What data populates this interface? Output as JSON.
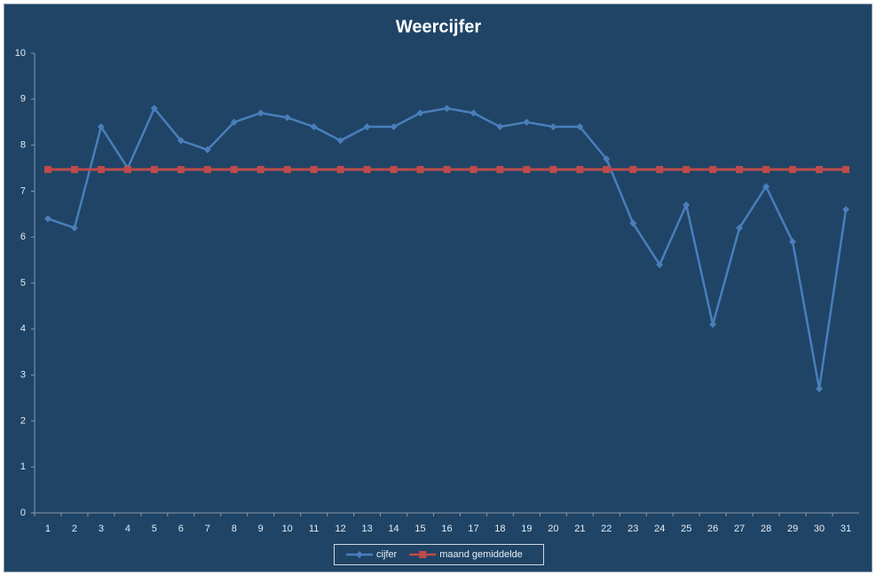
{
  "chart_data": {
    "type": "line",
    "title": "Weercijfer",
    "categories": [
      "1",
      "2",
      "3",
      "4",
      "5",
      "6",
      "7",
      "8",
      "9",
      "10",
      "11",
      "12",
      "13",
      "14",
      "15",
      "16",
      "17",
      "18",
      "19",
      "20",
      "21",
      "22",
      "23",
      "24",
      "25",
      "26",
      "27",
      "28",
      "29",
      "30",
      "31"
    ],
    "series": [
      {
        "name": "cijfer",
        "color": "#4a7ebb",
        "marker": "diamond",
        "values": [
          6.4,
          6.2,
          8.4,
          7.5,
          8.8,
          8.1,
          7.9,
          8.5,
          8.7,
          8.6,
          8.4,
          8.1,
          8.4,
          8.4,
          8.7,
          8.8,
          8.7,
          8.4,
          8.5,
          8.4,
          8.4,
          7.7,
          6.3,
          5.4,
          6.7,
          4.1,
          6.2,
          7.1,
          5.9,
          2.7,
          6.6
        ]
      },
      {
        "name": "maand gemiddelde",
        "color": "#be4b48",
        "marker": "square",
        "values": [
          7.47,
          7.47,
          7.47,
          7.47,
          7.47,
          7.47,
          7.47,
          7.47,
          7.47,
          7.47,
          7.47,
          7.47,
          7.47,
          7.47,
          7.47,
          7.47,
          7.47,
          7.47,
          7.47,
          7.47,
          7.47,
          7.47,
          7.47,
          7.47,
          7.47,
          7.47,
          7.47,
          7.47,
          7.47,
          7.47,
          7.47
        ]
      }
    ],
    "ylim": [
      0,
      10
    ],
    "yticks": [
      0,
      1,
      2,
      3,
      4,
      5,
      6,
      7,
      8,
      9,
      10
    ],
    "grid": false,
    "legend": "bottom"
  }
}
